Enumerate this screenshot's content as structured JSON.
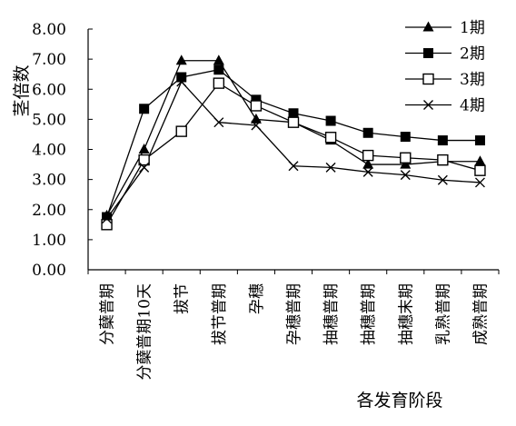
{
  "chart_data": {
    "type": "line",
    "categories": [
      "分蘖普期",
      "分蘖普期10天",
      "拔节",
      "拔节普期",
      "孕穗",
      "孕穗普期",
      "抽穗普期",
      "抽穗普期",
      "抽穗末期",
      "乳熟普期",
      "成熟普期"
    ],
    "series": [
      {
        "name": "1期",
        "marker": "triangle",
        "values": [
          1.8,
          4.0,
          6.95,
          6.95,
          5.0,
          4.9,
          4.3,
          3.5,
          3.5,
          3.6,
          3.6
        ]
      },
      {
        "name": "2期",
        "marker": "square-filled",
        "values": [
          1.75,
          5.35,
          6.4,
          6.65,
          5.65,
          5.2,
          4.95,
          4.55,
          4.42,
          4.3,
          4.3
        ]
      },
      {
        "name": "3期",
        "marker": "square-open",
        "values": [
          1.5,
          3.65,
          4.6,
          6.2,
          5.45,
          4.9,
          4.4,
          3.8,
          3.72,
          3.65,
          3.3
        ]
      },
      {
        "name": "4期",
        "marker": "x",
        "values": [
          1.7,
          3.4,
          6.25,
          4.9,
          4.8,
          3.45,
          3.4,
          3.25,
          3.15,
          2.98,
          2.9
        ]
      }
    ],
    "yticks": [
      "0.00",
      "1.00",
      "2.00",
      "3.00",
      "4.00",
      "5.00",
      "6.00",
      "7.00",
      "8.00"
    ],
    "ylim": [
      0,
      8
    ],
    "ylabel": "茎倍数",
    "xlabel": "各发育阶段",
    "legend_position": "top-right",
    "grid": false,
    "color": "#000000"
  }
}
